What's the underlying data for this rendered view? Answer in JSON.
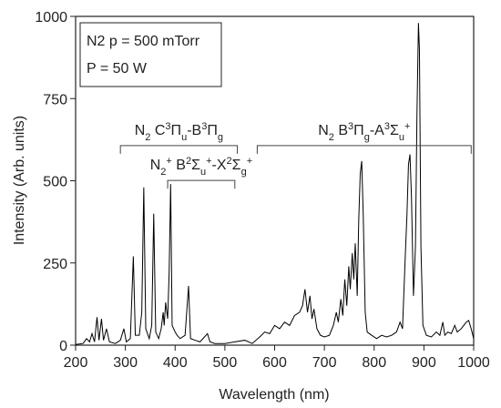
{
  "chart_data": {
    "type": "line",
    "xlabel": "Wavelength (nm)",
    "ylabel": "Intensity (Arb. units)",
    "color": "#000000",
    "xlim": [
      200,
      1000
    ],
    "xticks": [
      200,
      300,
      400,
      500,
      600,
      700,
      800,
      900,
      1000
    ],
    "ylim": [
      0,
      1000
    ],
    "yticks": [
      0,
      250,
      500,
      750,
      1000
    ],
    "legend_box": [
      "N2 p = 500 mTorr",
      "P = 50 W"
    ],
    "x": [
      200,
      215,
      222,
      228,
      233,
      238,
      243,
      247,
      252,
      256,
      262,
      268,
      280,
      290,
      297,
      302,
      310,
      316,
      320,
      328,
      333,
      337,
      341,
      348,
      353,
      357,
      361,
      367,
      372,
      376,
      378,
      381,
      385,
      388,
      391,
      394,
      400,
      404,
      410,
      420,
      427,
      431,
      440,
      450,
      465,
      470,
      480,
      500,
      520,
      540,
      555,
      570,
      580,
      590,
      600,
      610,
      620,
      630,
      640,
      650,
      656,
      661,
      666,
      671,
      675,
      679,
      685,
      692,
      700,
      710,
      718,
      724,
      728,
      733,
      737,
      741,
      745,
      749,
      752,
      756,
      759,
      762,
      766,
      769,
      772,
      775,
      778,
      782,
      786,
      795,
      805,
      815,
      825,
      835,
      845,
      852,
      857,
      862,
      866,
      869,
      872,
      875,
      879,
      883,
      886,
      889,
      891,
      894,
      898,
      905,
      915,
      925,
      932,
      938,
      942,
      948,
      955,
      962,
      967,
      975,
      985,
      990,
      995,
      1000
    ],
    "values": [
      2,
      5,
      20,
      10,
      35,
      10,
      85,
      15,
      80,
      15,
      50,
      10,
      5,
      15,
      50,
      10,
      20,
      270,
      30,
      30,
      100,
      480,
      50,
      20,
      60,
      400,
      40,
      20,
      50,
      100,
      60,
      130,
      80,
      220,
      490,
      60,
      40,
      30,
      20,
      30,
      180,
      20,
      15,
      10,
      35,
      10,
      5,
      5,
      10,
      15,
      5,
      25,
      40,
      35,
      60,
      50,
      70,
      60,
      90,
      100,
      120,
      170,
      100,
      150,
      80,
      110,
      50,
      30,
      25,
      30,
      60,
      100,
      70,
      140,
      90,
      200,
      120,
      240,
      170,
      280,
      200,
      310,
      150,
      380,
      520,
      560,
      400,
      100,
      40,
      30,
      20,
      30,
      25,
      30,
      40,
      70,
      50,
      250,
      400,
      550,
      580,
      450,
      150,
      300,
      700,
      980,
      900,
      300,
      60,
      30,
      25,
      40,
      30,
      70,
      30,
      40,
      35,
      60,
      40,
      50,
      70,
      75,
      50,
      20
    ],
    "annotations": [
      {
        "parts": [
          {
            "text": "N"
          },
          {
            "text": "2",
            "shift": "sub"
          },
          {
            "text": " C"
          },
          {
            "text": "3",
            "shift": "super"
          },
          {
            "text": "Π"
          },
          {
            "text": "u",
            "shift": "sub"
          },
          {
            "text": "-B"
          },
          {
            "text": "3",
            "shift": "super"
          },
          {
            "text": "Π"
          },
          {
            "text": "g",
            "shift": "sub"
          }
        ],
        "xrange": [
          290,
          525
        ],
        "y": 607
      },
      {
        "parts": [
          {
            "text": "N"
          },
          {
            "text": "2",
            "shift": "sub"
          },
          {
            "text": "+",
            "shift": "super"
          },
          {
            "text": " B"
          },
          {
            "text": "2",
            "shift": "super"
          },
          {
            "text": "Σ"
          },
          {
            "text": "u",
            "shift": "sub"
          },
          {
            "text": "+",
            "shift": "super"
          },
          {
            "text": "-X"
          },
          {
            "text": "2",
            "shift": "super"
          },
          {
            "text": "Σ"
          },
          {
            "text": "g",
            "shift": "sub"
          },
          {
            "text": "+",
            "shift": "super"
          }
        ],
        "xrange": [
          385,
          520
        ],
        "y": 501
      },
      {
        "parts": [
          {
            "text": "N"
          },
          {
            "text": "2",
            "shift": "sub"
          },
          {
            "text": " B"
          },
          {
            "text": "3",
            "shift": "super"
          },
          {
            "text": "Π"
          },
          {
            "text": "g",
            "shift": "sub"
          },
          {
            "text": "-A"
          },
          {
            "text": "3",
            "shift": "super"
          },
          {
            "text": "Σ"
          },
          {
            "text": "u",
            "shift": "sub"
          },
          {
            "text": "+",
            "shift": "super"
          }
        ],
        "xrange": [
          565,
          995
        ],
        "y": 607
      }
    ]
  }
}
